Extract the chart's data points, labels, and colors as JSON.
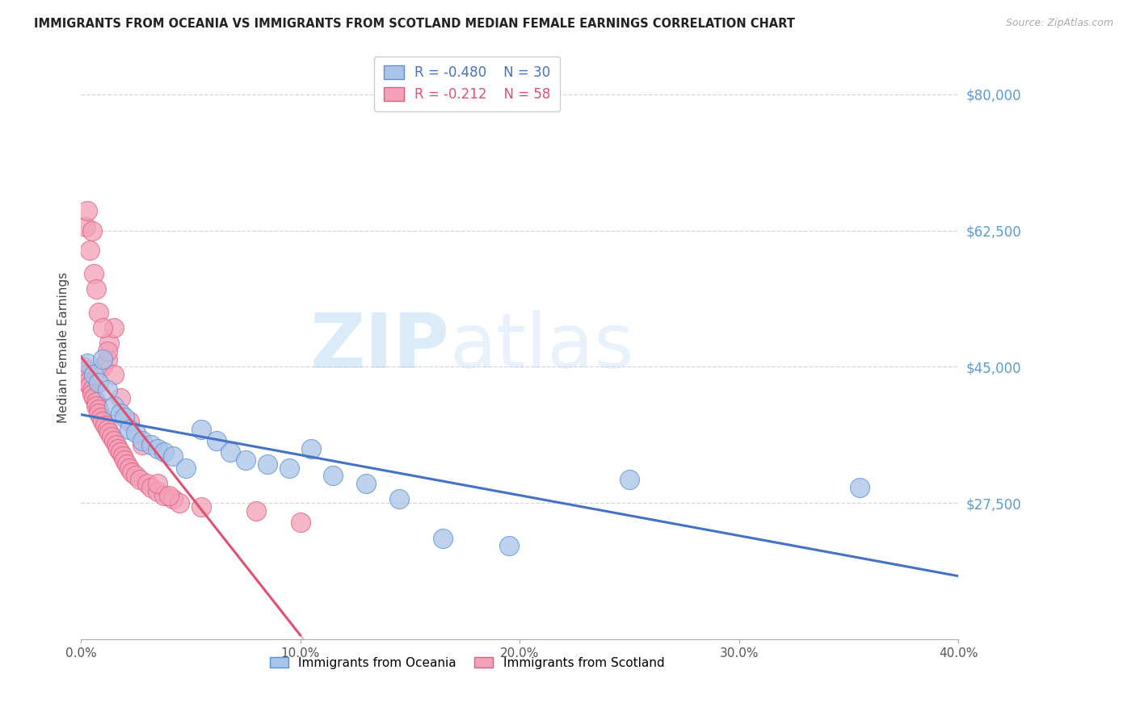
{
  "title": "IMMIGRANTS FROM OCEANIA VS IMMIGRANTS FROM SCOTLAND MEDIAN FEMALE EARNINGS CORRELATION CHART",
  "source": "Source: ZipAtlas.com",
  "ylabel": "Median Female Earnings",
  "watermark_zip": "ZIP",
  "watermark_atlas": "atlas",
  "xlim": [
    0.0,
    0.4
  ],
  "ylim": [
    10000,
    85000
  ],
  "yticks": [
    27500,
    45000,
    62500,
    80000
  ],
  "xticks": [
    0.0,
    0.1,
    0.2,
    0.3,
    0.4
  ],
  "xtick_labels": [
    "0.0%",
    "10.0%",
    "20.0%",
    "30.0%",
    "40.0%"
  ],
  "ytick_labels": [
    "$27,500",
    "$45,000",
    "$62,500",
    "$80,000"
  ],
  "series_oceania": {
    "label": "Immigrants from Oceania",
    "R": -0.48,
    "N": 30,
    "color": "#aac4e8",
    "edge_color": "#5b8fd4",
    "line_color": "#4472c4",
    "x": [
      0.003,
      0.006,
      0.008,
      0.01,
      0.012,
      0.015,
      0.018,
      0.02,
      0.022,
      0.025,
      0.028,
      0.032,
      0.035,
      0.038,
      0.042,
      0.048,
      0.055,
      0.062,
      0.068,
      0.075,
      0.085,
      0.095,
      0.105,
      0.115,
      0.13,
      0.145,
      0.165,
      0.195,
      0.25,
      0.355
    ],
    "y": [
      45500,
      44000,
      43000,
      46000,
      42000,
      40000,
      39000,
      38500,
      37000,
      36500,
      35500,
      35000,
      34500,
      34000,
      33500,
      32000,
      37000,
      35500,
      34000,
      33000,
      32500,
      32000,
      34500,
      31000,
      30000,
      28000,
      23000,
      22000,
      30500,
      29500
    ]
  },
  "series_scotland": {
    "label": "Immigrants from Scotland",
    "R": -0.212,
    "N": 58,
    "color": "#f4a0b8",
    "edge_color": "#e06080",
    "line_color": "#e05070",
    "x": [
      0.001,
      0.002,
      0.002,
      0.003,
      0.003,
      0.004,
      0.005,
      0.005,
      0.006,
      0.007,
      0.007,
      0.008,
      0.008,
      0.009,
      0.01,
      0.01,
      0.011,
      0.012,
      0.012,
      0.013,
      0.013,
      0.014,
      0.015,
      0.015,
      0.016,
      0.017,
      0.018,
      0.019,
      0.02,
      0.021,
      0.022,
      0.023,
      0.025,
      0.027,
      0.03,
      0.032,
      0.035,
      0.038,
      0.042,
      0.045,
      0.002,
      0.003,
      0.004,
      0.005,
      0.006,
      0.007,
      0.008,
      0.01,
      0.012,
      0.015,
      0.018,
      0.022,
      0.028,
      0.035,
      0.04,
      0.055,
      0.08,
      0.1
    ],
    "y": [
      45000,
      44500,
      43500,
      44000,
      43000,
      42500,
      42000,
      41500,
      41000,
      40500,
      40000,
      39500,
      39000,
      38500,
      38000,
      45000,
      37500,
      37000,
      46000,
      36500,
      48000,
      36000,
      35500,
      50000,
      35000,
      34500,
      34000,
      33500,
      33000,
      32500,
      32000,
      31500,
      31000,
      30500,
      30000,
      29500,
      29000,
      28500,
      28000,
      27500,
      63000,
      65000,
      60000,
      62500,
      57000,
      55000,
      52000,
      50000,
      47000,
      44000,
      41000,
      38000,
      35000,
      30000,
      28500,
      27000,
      26500,
      25000
    ]
  }
}
